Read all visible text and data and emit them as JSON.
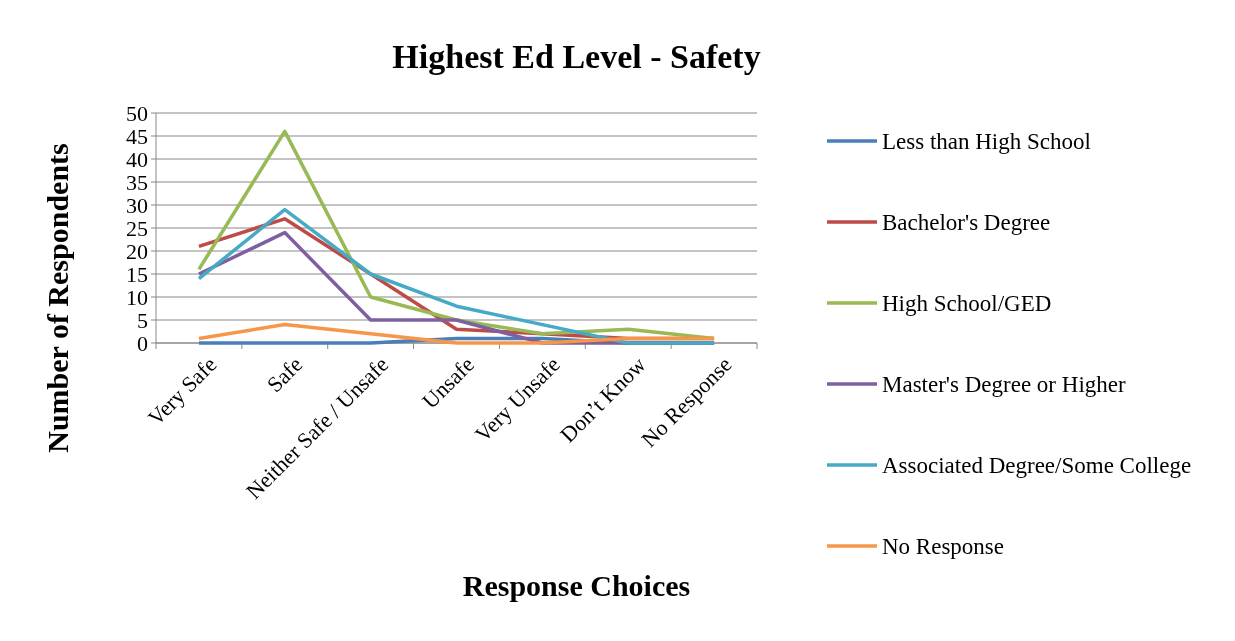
{
  "chart_data": {
    "type": "line",
    "title": "Highest Ed Level - Safety",
    "xlabel": "Response Choices",
    "ylabel": "Number of Respondents",
    "categories": [
      "Very Safe",
      "Safe",
      "Neither Safe / Unsafe",
      "Unsafe",
      "Very Unsafe",
      "Don’t Know",
      "No Response"
    ],
    "ylim": [
      0,
      50
    ],
    "yticks": [
      0,
      5,
      10,
      15,
      20,
      25,
      30,
      35,
      40,
      45,
      50
    ],
    "grid": "y",
    "legend": "right",
    "marker": "none",
    "series": [
      {
        "name": "Less than High School",
        "color": "#4a7ebb",
        "values": [
          0,
          0,
          0,
          1,
          1,
          0,
          0
        ]
      },
      {
        "name": "Bachelor's Degree",
        "color": "#be4b48",
        "values": [
          21,
          27,
          15,
          3,
          2,
          1,
          1
        ]
      },
      {
        "name": "High School/GED",
        "color": "#98b954",
        "values": [
          16,
          46,
          10,
          5,
          2,
          3,
          1
        ]
      },
      {
        "name": "Master's Degree or Higher",
        "color": "#7d60a0",
        "values": [
          15,
          24,
          5,
          5,
          0,
          0,
          0
        ]
      },
      {
        "name": "Associated Degree/Some College",
        "color": "#46aac5",
        "values": [
          14,
          29,
          15,
          8,
          4,
          0,
          0
        ]
      },
      {
        "name": "No Response",
        "color": "#f79646",
        "values": [
          1,
          4,
          2,
          0,
          0,
          1,
          1
        ]
      }
    ]
  }
}
